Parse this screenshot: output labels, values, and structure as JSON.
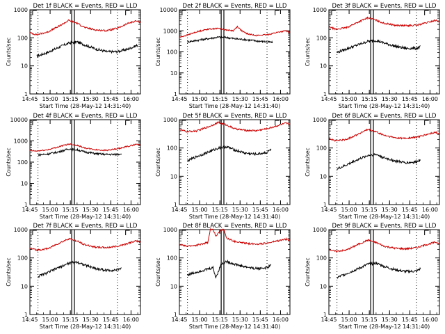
{
  "chart_data": [
    {
      "type": "line",
      "title": "Det 1f BLACK = Events, RED = LLD",
      "xlabel": "Start Time (28-May-12 14:31:40)",
      "ylabel": "Counts/sec",
      "y_scale": "log",
      "ylim": [
        1,
        1000
      ],
      "yticks": [
        "1",
        "10",
        "100",
        "1000"
      ],
      "xticks": [
        "14:45",
        "15:00",
        "15:15",
        "15:30",
        "15:45",
        "16:00"
      ],
      "x_domain_min": [
        45,
        127
      ],
      "series": [
        {
          "name": "Events",
          "color": "#000000",
          "x": [
            50,
            58,
            66,
            74,
            80,
            86,
            94,
            102,
            110,
            118,
            125
          ],
          "y": [
            22,
            30,
            45,
            65,
            72,
            55,
            40,
            32,
            32,
            40,
            55
          ]
        },
        {
          "name": "LLD",
          "color": "#cc0000",
          "x": [
            45,
            50,
            58,
            66,
            74,
            80,
            86,
            94,
            102,
            110,
            118,
            124,
            127
          ],
          "y": [
            150,
            130,
            160,
            250,
            420,
            330,
            230,
            190,
            180,
            220,
            330,
            400,
            350
          ]
        }
      ],
      "vlines_dotted": [
        51,
        110
      ],
      "vlines_solid": [
        76,
        78
      ],
      "saa_markers": [
        47,
        116
      ]
    },
    {
      "type": "line",
      "title": "Det 2f BLACK = Events, RED = LLD",
      "xlabel": "Start Time (28-May-12 14:31:40)",
      "ylabel": "Counts/sec",
      "y_scale": "log",
      "ylim": [
        1,
        10000
      ],
      "yticks": [
        "1",
        "10",
        "100",
        "1000",
        "10000"
      ],
      "xticks": [
        "14:45",
        "15:00",
        "15:15",
        "15:30",
        "15:45",
        "16:00"
      ],
      "x_domain_min": [
        45,
        127
      ],
      "series": [
        {
          "name": "Events",
          "color": "#000000",
          "x": [
            51,
            58,
            66,
            74,
            80,
            86,
            94,
            102,
            110,
            114
          ],
          "y": [
            300,
            350,
            420,
            500,
            480,
            420,
            380,
            330,
            300,
            280
          ]
        },
        {
          "name": "LLD",
          "color": "#cc0000",
          "x": [
            45,
            50,
            58,
            66,
            74,
            80,
            85,
            88,
            92,
            96,
            102,
            110,
            118,
            124,
            127
          ],
          "y": [
            500,
            600,
            900,
            1200,
            1300,
            1100,
            1000,
            1600,
            900,
            700,
            600,
            650,
            850,
            1000,
            800
          ]
        }
      ],
      "vlines_dotted": [
        51,
        110
      ],
      "vlines_solid": [
        76,
        78
      ],
      "saa_markers": [
        47,
        116
      ]
    },
    {
      "type": "line",
      "title": "Det 3f BLACK = Events, RED = LLD",
      "xlabel": "Start Time (28-May-12 14:31:40)",
      "ylabel": "Counts/sec",
      "y_scale": "log",
      "ylim": [
        1,
        1000
      ],
      "yticks": [
        "1",
        "10",
        "100",
        "1000"
      ],
      "xticks": [
        "14:45",
        "15:00",
        "15:15",
        "15:30",
        "15:45",
        "16:00"
      ],
      "x_domain_min": [
        45,
        127
      ],
      "series": [
        {
          "name": "Events",
          "color": "#000000",
          "x": [
            51,
            58,
            66,
            74,
            80,
            86,
            94,
            102,
            110,
            113
          ],
          "y": [
            30,
            40,
            55,
            75,
            80,
            65,
            50,
            42,
            42,
            48
          ]
        },
        {
          "name": "LLD",
          "color": "#cc0000",
          "x": [
            45,
            50,
            58,
            66,
            74,
            80,
            86,
            94,
            102,
            110,
            118,
            124,
            127
          ],
          "y": [
            250,
            200,
            230,
            350,
            520,
            420,
            330,
            280,
            270,
            280,
            350,
            420,
            380
          ]
        }
      ],
      "vlines_dotted": [
        51,
        110
      ],
      "vlines_solid": [
        76,
        78
      ],
      "saa_markers": [
        47,
        116
      ]
    },
    {
      "type": "line",
      "title": "Det 4f BLACK = Events, RED = LLD",
      "xlabel": "Start Time (28-May-12 14:31:40)",
      "ylabel": "Counts/sec",
      "y_scale": "log",
      "ylim": [
        1,
        10000
      ],
      "yticks": [
        "1",
        "10",
        "100",
        "1000",
        "10000"
      ],
      "xticks": [
        "14:45",
        "15:00",
        "15:15",
        "15:30",
        "15:45",
        "16:00"
      ],
      "x_domain_min": [
        45,
        127
      ],
      "series": [
        {
          "name": "Events",
          "color": "#000000",
          "x": [
            51,
            58,
            66,
            74,
            80,
            86,
            94,
            102,
            110,
            113
          ],
          "y": [
            220,
            240,
            300,
            420,
            380,
            300,
            250,
            230,
            230,
            260
          ]
        },
        {
          "name": "LLD",
          "color": "#cc0000",
          "x": [
            45,
            50,
            58,
            66,
            74,
            80,
            86,
            94,
            102,
            110,
            118,
            124,
            127
          ],
          "y": [
            350,
            330,
            380,
            520,
            720,
            620,
            460,
            380,
            360,
            420,
            560,
            700,
            650
          ]
        }
      ],
      "vlines_dotted": [
        51,
        110
      ],
      "vlines_solid": [
        76,
        78
      ],
      "saa_markers": [
        47,
        116
      ]
    },
    {
      "type": "line",
      "title": "Det 5f BLACK = Events, RED = LLD",
      "xlabel": "Start Time (28-May-12 14:31:40)",
      "ylabel": "Counts/sec",
      "y_scale": "log",
      "ylim": [
        1,
        1000
      ],
      "yticks": [
        "1",
        "10",
        "100",
        "1000"
      ],
      "xticks": [
        "14:45",
        "15:00",
        "15:15",
        "15:30",
        "15:45",
        "16:00"
      ],
      "x_domain_min": [
        45,
        127
      ],
      "series": [
        {
          "name": "Events",
          "color": "#000000",
          "x": [
            51,
            58,
            66,
            74,
            80,
            86,
            94,
            102,
            110,
            113
          ],
          "y": [
            35,
            50,
            70,
            100,
            110,
            85,
            65,
            60,
            70,
            90
          ]
        },
        {
          "name": "LLD",
          "color": "#cc0000",
          "x": [
            45,
            50,
            58,
            66,
            74,
            80,
            86,
            94,
            102,
            110,
            118,
            124,
            127
          ],
          "y": [
            450,
            380,
            400,
            550,
            800,
            650,
            480,
            420,
            410,
            480,
            620,
            750,
            680
          ]
        }
      ],
      "vlines_dotted": [
        51,
        110
      ],
      "vlines_solid": [
        76,
        78
      ],
      "saa_markers": [
        47,
        116
      ]
    },
    {
      "type": "line",
      "title": "Det 6f BLACK = Events, RED = LLD",
      "xlabel": "Start Time (28-May-12 14:31:40)",
      "ylabel": "Counts/sec",
      "y_scale": "log",
      "ylim": [
        1,
        1000
      ],
      "yticks": [
        "1",
        "10",
        "100",
        "1000"
      ],
      "xticks": [
        "14:45",
        "15:00",
        "15:15",
        "15:30",
        "15:45",
        "16:00"
      ],
      "x_domain_min": [
        45,
        127
      ],
      "series": [
        {
          "name": "Events",
          "color": "#000000",
          "x": [
            51,
            58,
            66,
            74,
            80,
            86,
            94,
            102,
            110,
            113
          ],
          "y": [
            18,
            25,
            38,
            55,
            60,
            45,
            35,
            30,
            32,
            40
          ]
        },
        {
          "name": "LLD",
          "color": "#cc0000",
          "x": [
            45,
            50,
            58,
            66,
            74,
            80,
            86,
            94,
            102,
            110,
            118,
            124,
            127
          ],
          "y": [
            220,
            180,
            200,
            300,
            450,
            370,
            280,
            230,
            220,
            240,
            300,
            360,
            320
          ]
        }
      ],
      "vlines_dotted": [
        51,
        110
      ],
      "vlines_solid": [
        76,
        78
      ],
      "saa_markers": [
        47,
        116
      ]
    },
    {
      "type": "line",
      "title": "Det 7f BLACK = Events, RED = LLD",
      "xlabel": "Start Time (28-May-12 14:31:40)",
      "ylabel": "Counts/sec",
      "y_scale": "log",
      "ylim": [
        1,
        1000
      ],
      "yticks": [
        "1",
        "10",
        "100",
        "1000"
      ],
      "xticks": [
        "14:45",
        "15:00",
        "15:15",
        "15:30",
        "15:45",
        "16:00"
      ],
      "x_domain_min": [
        45,
        127
      ],
      "series": [
        {
          "name": "Events",
          "color": "#000000",
          "x": [
            51,
            58,
            66,
            74,
            80,
            86,
            94,
            102,
            110,
            113
          ],
          "y": [
            22,
            30,
            45,
            65,
            72,
            55,
            42,
            36,
            38,
            45
          ]
        },
        {
          "name": "LLD",
          "color": "#cc0000",
          "x": [
            45,
            50,
            58,
            66,
            74,
            80,
            86,
            94,
            102,
            110,
            118,
            124,
            127
          ],
          "y": [
            220,
            190,
            210,
            320,
            480,
            390,
            290,
            240,
            230,
            260,
            330,
            400,
            360
          ]
        }
      ],
      "vlines_dotted": [
        51,
        110
      ],
      "vlines_solid": [
        76,
        78
      ],
      "saa_markers": [
        47,
        116
      ]
    },
    {
      "type": "line",
      "title": "Det 8f BLACK = Events, RED = LLD",
      "xlabel": "Start Time (28-May-12 14:31:40)",
      "ylabel": "Counts/sec",
      "y_scale": "log",
      "ylim": [
        1,
        1000
      ],
      "yticks": [
        "1",
        "10",
        "100",
        "1000"
      ],
      "xticks": [
        "14:45",
        "15:00",
        "15:15",
        "15:30",
        "15:45",
        "16:00"
      ],
      "x_domain_min": [
        45,
        127
      ],
      "series": [
        {
          "name": "Events",
          "color": "#000000",
          "x": [
            51,
            58,
            66,
            70,
            72,
            76,
            80,
            86,
            94,
            102,
            110,
            113
          ],
          "y": [
            25,
            32,
            40,
            45,
            20,
            60,
            75,
            60,
            48,
            42,
            45,
            55
          ]
        },
        {
          "name": "LLD",
          "color": "#cc0000",
          "x": [
            45,
            50,
            58,
            66,
            68,
            70,
            72,
            76,
            78,
            80,
            86,
            94,
            102,
            110,
            118,
            124,
            127
          ],
          "y": [
            300,
            260,
            280,
            350,
            1000,
            1000,
            600,
            1000,
            1000,
            500,
            380,
            330,
            310,
            330,
            400,
            460,
            420
          ]
        }
      ],
      "vlines_dotted": [
        51,
        110
      ],
      "vlines_solid": [
        76,
        78
      ],
      "saa_markers": [
        47,
        116
      ]
    },
    {
      "type": "line",
      "title": "Det 9f BLACK = Events, RED = LLD",
      "xlabel": "Start Time (28-May-12 14:31:40)",
      "ylabel": "Counts/sec",
      "y_scale": "log",
      "ylim": [
        1,
        1000
      ],
      "yticks": [
        "1",
        "10",
        "100",
        "1000"
      ],
      "xticks": [
        "14:45",
        "15:00",
        "15:15",
        "15:30",
        "15:45",
        "16:00"
      ],
      "x_domain_min": [
        45,
        127
      ],
      "series": [
        {
          "name": "Events",
          "color": "#000000",
          "x": [
            51,
            58,
            66,
            74,
            80,
            86,
            94,
            102,
            110,
            113
          ],
          "y": [
            20,
            28,
            40,
            60,
            65,
            50,
            38,
            33,
            34,
            42
          ]
        },
        {
          "name": "LLD",
          "color": "#cc0000",
          "x": [
            45,
            50,
            58,
            66,
            74,
            80,
            86,
            94,
            102,
            110,
            118,
            124,
            127
          ],
          "y": [
            200,
            170,
            190,
            290,
            430,
            350,
            260,
            220,
            210,
            230,
            300,
            360,
            330
          ]
        }
      ],
      "vlines_dotted": [
        51,
        110
      ],
      "vlines_solid": [
        76,
        78
      ],
      "saa_markers": [
        47,
        116
      ]
    }
  ]
}
